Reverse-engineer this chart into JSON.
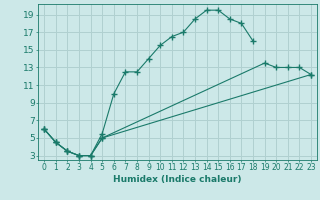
{
  "xlabel": "Humidex (Indice chaleur)",
  "bg_color": "#cce8e8",
  "grid_color": "#b0d0d0",
  "line_color": "#1a7a6a",
  "xlim": [
    -0.5,
    23.5
  ],
  "ylim": [
    2.5,
    20.2
  ],
  "xticks": [
    0,
    1,
    2,
    3,
    4,
    5,
    6,
    7,
    8,
    9,
    10,
    11,
    12,
    13,
    14,
    15,
    16,
    17,
    18,
    19,
    20,
    21,
    22,
    23
  ],
  "yticks": [
    3,
    5,
    7,
    9,
    11,
    13,
    15,
    17,
    19
  ],
  "line1_x": [
    0,
    1,
    2,
    3,
    4,
    5,
    6,
    7,
    8,
    9,
    10,
    11,
    12,
    13,
    14,
    15,
    16,
    17,
    18
  ],
  "line1_y": [
    6,
    4.5,
    3.5,
    3,
    3,
    5.5,
    10,
    12.5,
    12.5,
    14,
    15.5,
    16.5,
    17,
    18.5,
    19.5,
    19.5,
    18.5,
    18,
    16
  ],
  "line2_x": [
    0,
    1,
    2,
    3,
    4,
    5,
    23
  ],
  "line2_y": [
    6,
    4.5,
    3.5,
    3,
    3,
    5,
    12.2
  ],
  "line3_x": [
    0,
    1,
    2,
    3,
    4,
    5,
    19,
    20,
    21,
    22,
    23
  ],
  "line3_y": [
    6,
    4.5,
    3.5,
    3,
    3,
    5,
    13.5,
    13,
    13,
    13,
    12.2
  ],
  "xlabel_fontsize": 6.5,
  "tick_fontsize_x": 5.5,
  "tick_fontsize_y": 6.5
}
